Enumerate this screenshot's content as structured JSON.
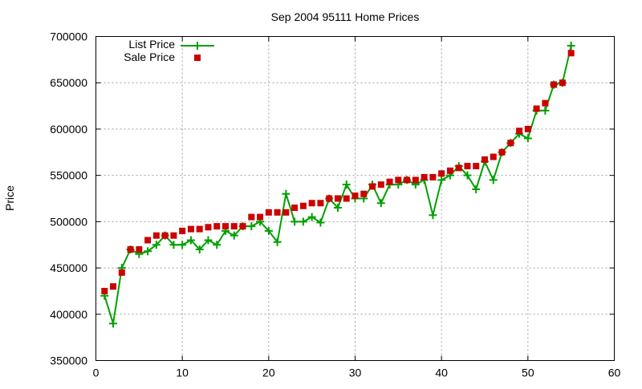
{
  "chart_data": {
    "type": "line",
    "title": "Sep 2004 95111 Home Prices",
    "xlabel": "",
    "ylabel": "Price",
    "xlim": [
      0,
      60
    ],
    "ylim": [
      350000,
      700000
    ],
    "xticks": [
      0,
      10,
      20,
      30,
      40,
      50,
      60
    ],
    "yticks": [
      350000,
      400000,
      450000,
      500000,
      550000,
      600000,
      650000,
      700000
    ],
    "grid": true,
    "legend": "top-left",
    "x": [
      1,
      2,
      3,
      4,
      5,
      6,
      7,
      8,
      9,
      10,
      11,
      12,
      13,
      14,
      15,
      16,
      17,
      18,
      19,
      20,
      21,
      22,
      23,
      24,
      25,
      26,
      27,
      28,
      29,
      30,
      31,
      32,
      33,
      34,
      35,
      36,
      37,
      38,
      39,
      40,
      41,
      42,
      43,
      44,
      45,
      46,
      47,
      48,
      49,
      50,
      51,
      52,
      53,
      54,
      55
    ],
    "series": [
      {
        "name": "List Price",
        "style": "linespoints",
        "marker": "plus",
        "color": "#00a000",
        "values": [
          420000,
          390000,
          450000,
          470000,
          465000,
          468000,
          475000,
          485000,
          475000,
          475000,
          480000,
          470000,
          480000,
          475000,
          490000,
          485000,
          495000,
          495000,
          500000,
          490000,
          478000,
          530000,
          500000,
          500000,
          505000,
          499000,
          525000,
          515000,
          540000,
          525000,
          525000,
          540000,
          520000,
          540000,
          540000,
          545000,
          540000,
          545000,
          507000,
          545000,
          550000,
          560000,
          550000,
          535000,
          565000,
          545000,
          575000,
          585000,
          595000,
          590000,
          620000,
          620000,
          648000,
          650000,
          690000
        ]
      },
      {
        "name": "Sale Price",
        "style": "points",
        "marker": "square",
        "color": "#cc0000",
        "values": [
          425000,
          430000,
          445000,
          470000,
          470000,
          480000,
          485000,
          485000,
          485000,
          490000,
          492000,
          492000,
          494000,
          495000,
          495000,
          495000,
          495000,
          505000,
          505000,
          510000,
          510000,
          510000,
          515000,
          517000,
          520000,
          520000,
          525000,
          525000,
          525000,
          528000,
          530000,
          538000,
          540000,
          543000,
          545000,
          545000,
          545000,
          548000,
          548000,
          552000,
          555000,
          558000,
          560000,
          560000,
          567000,
          570000,
          575000,
          585000,
          598000,
          600000,
          622000,
          628000,
          648000,
          650000,
          682000
        ]
      }
    ]
  }
}
